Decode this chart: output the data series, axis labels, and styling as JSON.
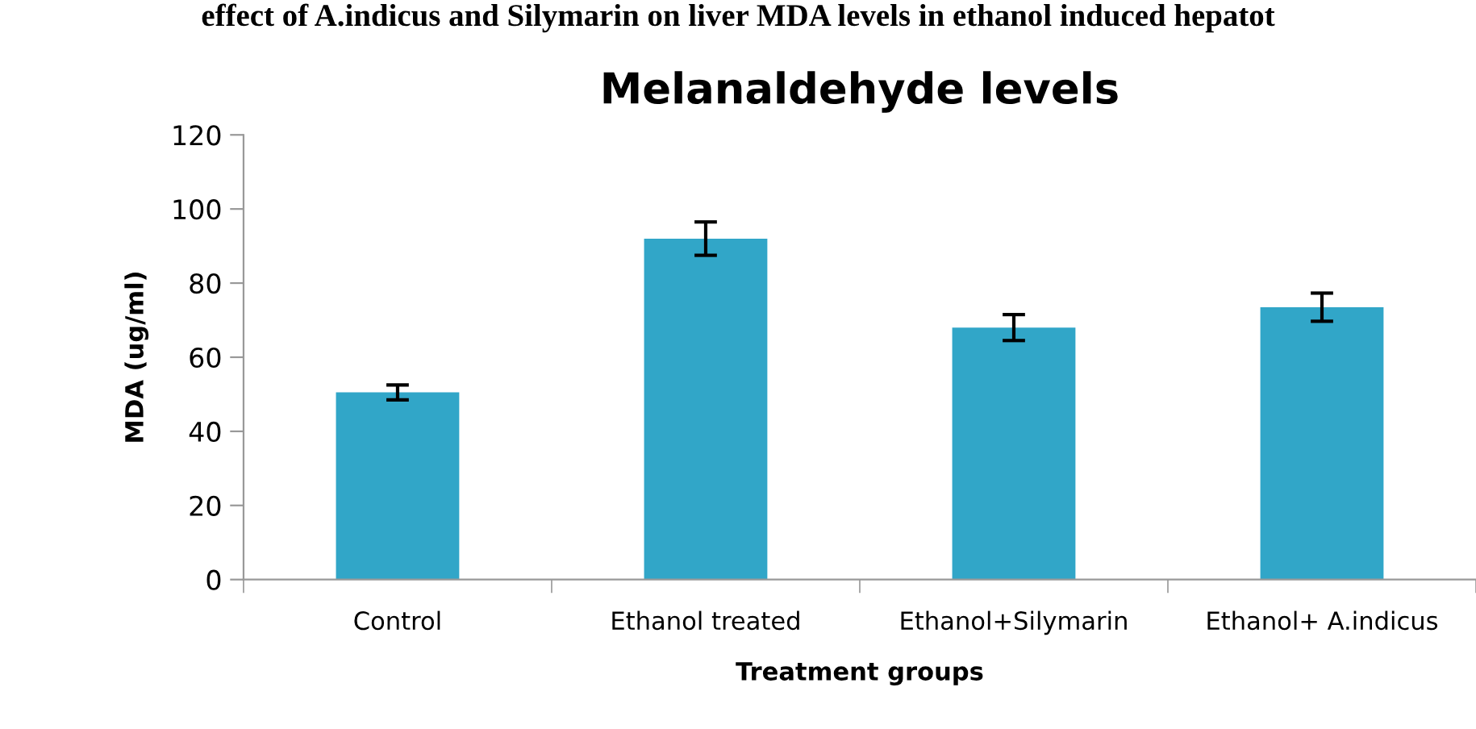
{
  "chart_data": {
    "type": "bar",
    "title": "Melanaldehyde levels",
    "xlabel": "Treatment groups",
    "ylabel": "MDA (ug/ml)",
    "annotations": [
      "effect of A.indicus and Silymarin on liver MDA levels in ethanol induced hepatot"
    ],
    "categories": [
      "Control",
      "Ethanol treated",
      "Ethanol+Silymarin",
      "Ethanol+ A.indicus"
    ],
    "values": [
      50.5,
      92,
      68,
      73.5
    ],
    "errors": [
      2,
      4.5,
      3.5,
      3.8
    ],
    "color": "#31a6c8",
    "ylim": [
      0,
      120
    ],
    "yticks": [
      0,
      20,
      40,
      60,
      80,
      100,
      120
    ],
    "grid": false
  }
}
